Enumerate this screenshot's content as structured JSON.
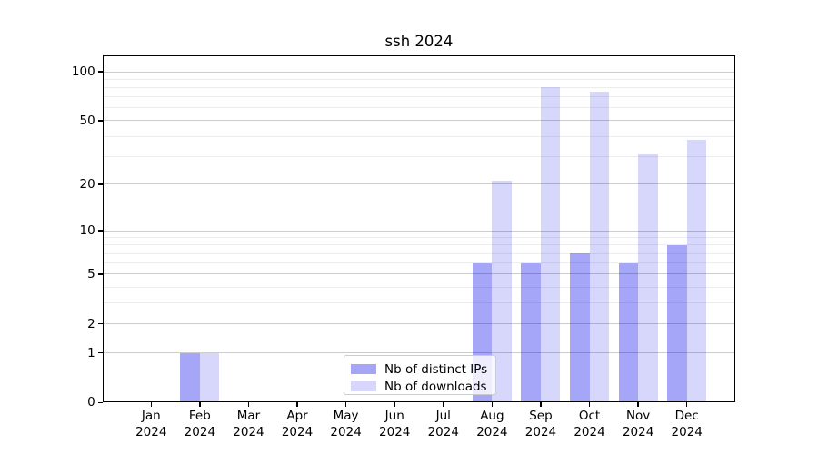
{
  "title": "ssh 2024",
  "chart_data": {
    "type": "bar",
    "title": "ssh 2024",
    "categories": [
      "Jan 2024",
      "Feb 2024",
      "Mar 2024",
      "Apr 2024",
      "May 2024",
      "Jun 2024",
      "Jul 2024",
      "Aug 2024",
      "Sep 2024",
      "Oct 2024",
      "Nov 2024",
      "Dec 2024"
    ],
    "series": [
      {
        "name": "Nb of distinct IPs",
        "color": "rgba(0,0,238,0.35)",
        "solid_hex": "#a6a6f9",
        "values": [
          0,
          1,
          0,
          0,
          0,
          0,
          0,
          6,
          6,
          7,
          6,
          8
        ]
      },
      {
        "name": "Nb of downloads",
        "color": "rgba(0,0,238,0.155)",
        "solid_hex": "#d8d8fc",
        "values": [
          0,
          1,
          0,
          0,
          0,
          0,
          0,
          21,
          80,
          75,
          31,
          38
        ]
      }
    ],
    "y_scale": "log1p",
    "ylim": [
      0,
      125
    ],
    "y_major_ticks": [
      0,
      1,
      2,
      5,
      10,
      20,
      50,
      100
    ],
    "y_minor_gridlines": [
      3,
      4,
      6,
      7,
      8,
      9,
      30,
      40,
      60,
      70,
      80,
      90
    ],
    "grid": true,
    "legend_position": "lower-center-inside",
    "colors": {
      "major_grid": "#cccccc",
      "minor_grid": "#ededed",
      "axis": "#000000",
      "text": "#000000"
    }
  }
}
